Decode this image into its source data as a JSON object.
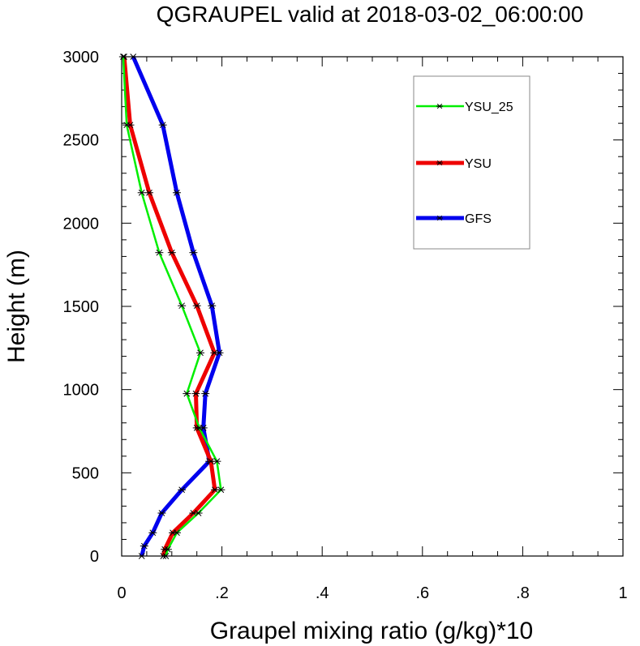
{
  "chart_data": {
    "type": "line",
    "title": "QGRAUPEL valid at 2018-03-02_06:00:00",
    "xlabel": "Graupel mixing ratio (g/kg)*10",
    "ylabel": "Height (m)",
    "xlim": [
      0,
      1
    ],
    "ylim": [
      0,
      3000
    ],
    "xticks": [
      0,
      0.2,
      0.4,
      0.6,
      0.8,
      1
    ],
    "xtick_labels": [
      "0",
      ".2",
      ".4",
      ".6",
      ".8",
      "1"
    ],
    "yticks": [
      0,
      500,
      1000,
      1500,
      2000,
      2500,
      3000
    ],
    "ytick_labels": [
      "0",
      "500",
      "1000",
      "1500",
      "2000",
      "2500",
      "3000"
    ],
    "grid": false,
    "legend_position": "top-right",
    "series": [
      {
        "name": "YSU_25",
        "color": "#00ee00",
        "points": [
          [
            0.088,
            0
          ],
          [
            0.092,
            40
          ],
          [
            0.11,
            140
          ],
          [
            0.153,
            258
          ],
          [
            0.198,
            398
          ],
          [
            0.19,
            569
          ],
          [
            0.155,
            770
          ],
          [
            0.13,
            976
          ],
          [
            0.157,
            1221
          ],
          [
            0.12,
            1504
          ],
          [
            0.075,
            1823
          ],
          [
            0.04,
            2183
          ],
          [
            0.01,
            2590
          ],
          [
            0.003,
            3000
          ]
        ]
      },
      {
        "name": "YSU",
        "color": "#ee0000",
        "points": [
          [
            0.083,
            0
          ],
          [
            0.086,
            40
          ],
          [
            0.102,
            140
          ],
          [
            0.143,
            258
          ],
          [
            0.186,
            398
          ],
          [
            0.178,
            569
          ],
          [
            0.15,
            770
          ],
          [
            0.148,
            976
          ],
          [
            0.185,
            1221
          ],
          [
            0.15,
            1504
          ],
          [
            0.1,
            1823
          ],
          [
            0.055,
            2183
          ],
          [
            0.017,
            2590
          ],
          [
            0.005,
            3000
          ]
        ]
      },
      {
        "name": "GFS",
        "color": "#0000ee",
        "points": [
          [
            0.04,
            0
          ],
          [
            0.045,
            60
          ],
          [
            0.062,
            140
          ],
          [
            0.08,
            258
          ],
          [
            0.12,
            398
          ],
          [
            0.175,
            569
          ],
          [
            0.163,
            770
          ],
          [
            0.167,
            976
          ],
          [
            0.195,
            1221
          ],
          [
            0.18,
            1504
          ],
          [
            0.143,
            1823
          ],
          [
            0.11,
            2183
          ],
          [
            0.082,
            2590
          ],
          [
            0.023,
            3000
          ]
        ]
      }
    ]
  }
}
